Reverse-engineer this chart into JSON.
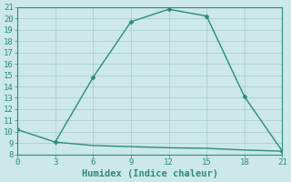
{
  "xlabel": "Humidex (Indice chaleur)",
  "line1_x": [
    0,
    3,
    6,
    9,
    12,
    15,
    18,
    21
  ],
  "line1_y": [
    10.2,
    9.1,
    14.8,
    19.7,
    20.8,
    20.2,
    13.1,
    8.3
  ],
  "line2_x": [
    3,
    6,
    9,
    12,
    15,
    18,
    21
  ],
  "line2_y": [
    9.1,
    8.8,
    8.7,
    8.6,
    8.55,
    8.4,
    8.3
  ],
  "line_color": "#2e8b7a",
  "bg_color": "#cce8e8",
  "grid_color": "#aecece",
  "xlim": [
    0,
    21
  ],
  "ylim": [
    8,
    21
  ],
  "xticks": [
    0,
    3,
    6,
    9,
    12,
    15,
    18,
    21
  ],
  "yticks": [
    8,
    9,
    10,
    11,
    12,
    13,
    14,
    15,
    16,
    17,
    18,
    19,
    20,
    21
  ],
  "tick_fontsize": 6.5,
  "label_fontsize": 7.5,
  "marker_size": 2.5,
  "line_width": 1.0
}
